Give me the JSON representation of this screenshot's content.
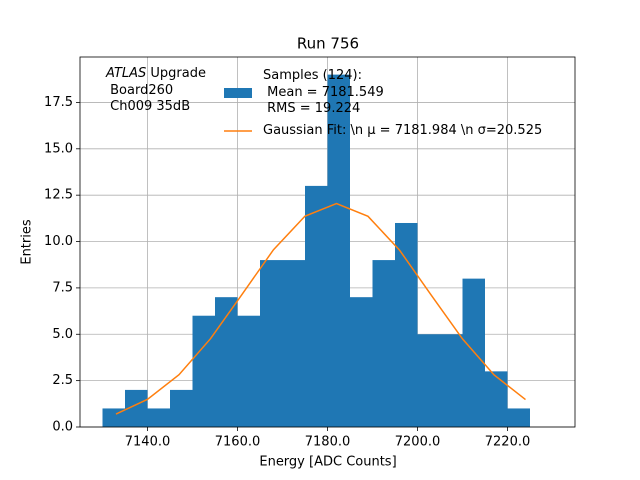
{
  "chart_data": {
    "type": "histogram",
    "title": "Run 756",
    "xlabel": "Energy [ADC Counts]",
    "ylabel": "Entries",
    "annotation": [
      "ATLAS",
      " Upgrade\n Board260\n Ch009 35dB"
    ],
    "bins": [
      7130,
      7135,
      7140,
      7145,
      7150,
      7155,
      7160,
      7165,
      7170,
      7175,
      7180,
      7185,
      7190,
      7195,
      7200,
      7205,
      7210,
      7215,
      7220,
      7225
    ],
    "series": [
      {
        "name": "Samples (124):\n Mean = 7181.549\n RMS = 19.224",
        "color": "#1f77b4",
        "values": [
          1,
          2,
          1,
          2,
          6,
          7,
          6,
          9,
          9,
          13,
          19,
          7,
          9,
          11,
          5,
          5,
          8,
          3,
          1
        ]
      }
    ],
    "fit": {
      "name": "Gaussian Fit: \\n μ = 7181.984 \\n σ=20.525",
      "color": "#ff7f0e",
      "x": [
        7133,
        7140,
        7147,
        7154,
        7161,
        7168,
        7175,
        7182,
        7189,
        7196,
        7203,
        7210,
        7217,
        7224
      ],
      "values": [
        0.7,
        1.49,
        2.82,
        4.76,
        7.15,
        9.56,
        11.37,
        12.05,
        11.36,
        9.54,
        7.13,
        4.75,
        2.81,
        1.48
      ]
    },
    "xlim": [
      7125,
      7235
    ],
    "ylim": [
      0,
      19.95
    ],
    "xticks": [
      {
        "value": 7140,
        "label": "7140.0"
      },
      {
        "value": 7160,
        "label": "7160.0"
      },
      {
        "value": 7180,
        "label": "7180.0"
      },
      {
        "value": 7200,
        "label": "7200.0"
      },
      {
        "value": 7220,
        "label": "7220.0"
      }
    ],
    "yticks": [
      {
        "value": 0,
        "label": "0.0"
      },
      2.5,
      {
        "value": 5,
        "label": "5.0"
      },
      7.5,
      {
        "value": 10,
        "label": "10.0"
      },
      12.5,
      {
        "value": 15,
        "label": "15.0"
      },
      17.5
    ],
    "grid": true
  }
}
